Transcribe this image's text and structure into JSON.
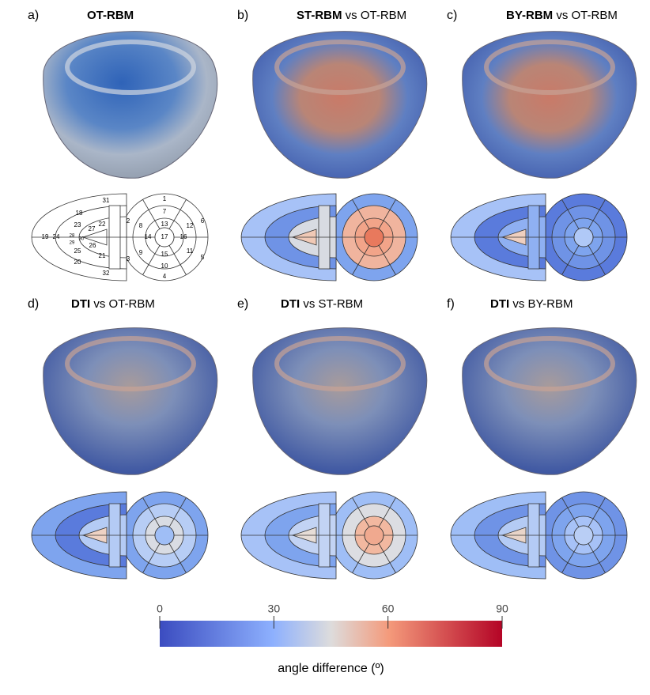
{
  "panels": [
    {
      "label": "a)",
      "title_bold": "OT-RBM",
      "title_rest": ""
    },
    {
      "label": "b)",
      "title_bold": "ST-RBM",
      "title_rest": " vs OT-RBM"
    },
    {
      "label": "c)",
      "title_bold": "BY-RBM",
      "title_rest": " vs OT-RBM"
    },
    {
      "label": "d)",
      "title_bold": "DTI",
      "title_rest": "  vs OT-RBM"
    },
    {
      "label": "e)",
      "title_bold": "DTI",
      "title_rest": " vs ST-RBM"
    },
    {
      "label": "f)",
      "title_bold": "DTI",
      "title_rest": " vs BY-RBM"
    }
  ],
  "segments": [
    "1",
    "2",
    "3",
    "4",
    "5",
    "6",
    "7",
    "8",
    "9",
    "10",
    "11",
    "12",
    "13",
    "14",
    "15",
    "16",
    "17",
    "18",
    "19",
    "20",
    "21",
    "22",
    "23",
    "24",
    "25",
    "26",
    "27",
    "28",
    "29",
    "30",
    "31",
    "32"
  ],
  "colorbar": {
    "range": [
      0,
      90
    ],
    "ticks": [
      0,
      30,
      60,
      90
    ],
    "label": "angle difference (º)"
  }
}
